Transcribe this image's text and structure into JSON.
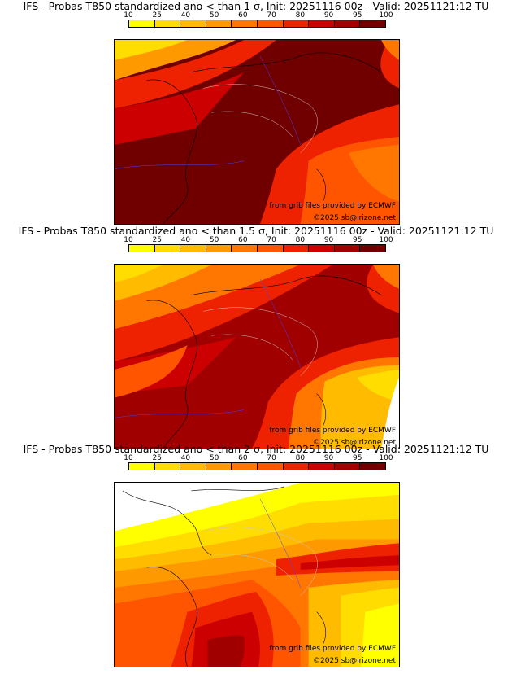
{
  "colorbar": {
    "ticks": [
      "10",
      "25",
      "40",
      "50",
      "60",
      "70",
      "80",
      "90",
      "95",
      "100"
    ],
    "colors": [
      "#ffff00",
      "#ffdd00",
      "#ffbb00",
      "#ff9900",
      "#ff7700",
      "#ff5500",
      "#ee2200",
      "#cc0000",
      "#a00000",
      "#700000"
    ]
  },
  "panels": [
    {
      "title": "IFS - Probas T850  standardized ano < than 1 σ, Init: 20251116 00z - Valid: 20251121:12 TU",
      "credit_source": "from grib files provided by ECMWF",
      "credit_author": "©2025 sb@irizone.net"
    },
    {
      "title": "IFS - Probas T850  standardized ano < than 1.5 σ, Init: 20251116 00z - Valid: 20251121:12 TU",
      "credit_source": "from grib files provided by ECMWF",
      "credit_author": "©2025 sb@irizone.net"
    },
    {
      "title": "IFS - Probas T850  standardized ano < than 2 σ, Init: 20251116 00z - Valid: 20251121:12 TU",
      "credit_source": "from grib files provided by ECMWF",
      "credit_author": "©2025 sb@irizone.net"
    }
  ]
}
